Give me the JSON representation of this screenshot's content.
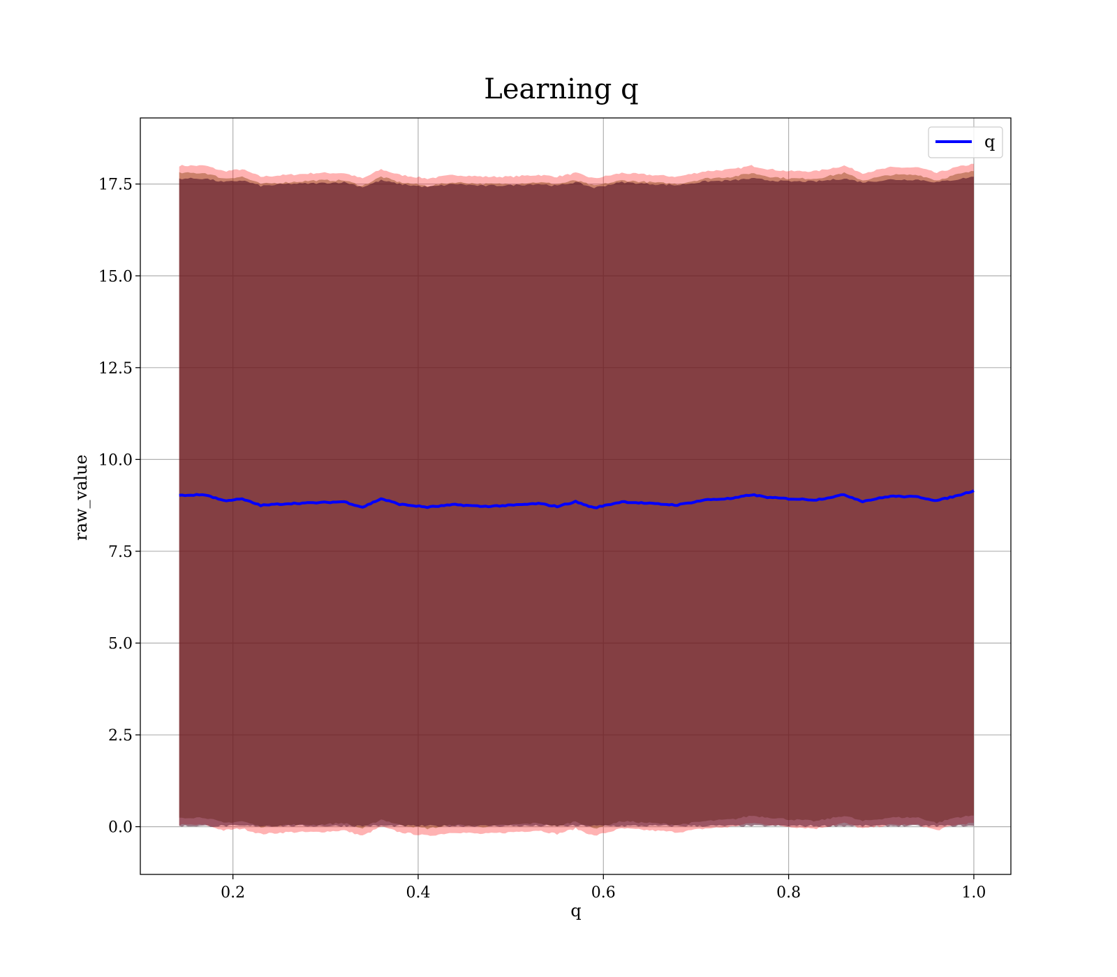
{
  "chart_data": {
    "type": "area",
    "title": "Learning q",
    "xlabel": "q",
    "ylabel": "raw_value",
    "xlim": [
      0.1,
      1.04
    ],
    "ylim": [
      -1.3,
      19.3
    ],
    "x_ticks": [
      0.2,
      0.4,
      0.6,
      0.8,
      1.0
    ],
    "x_tick_labels": [
      "0.2",
      "0.4",
      "0.6",
      "0.8",
      "1.0"
    ],
    "y_ticks": [
      0.0,
      2.5,
      5.0,
      7.5,
      10.0,
      12.5,
      15.0,
      17.5
    ],
    "y_tick_labels": [
      "0.0",
      "2.5",
      "5.0",
      "7.5",
      "10.0",
      "12.5",
      "15.0",
      "17.5"
    ],
    "grid": true,
    "legend": {
      "position": "top-right",
      "entries": [
        "q"
      ]
    },
    "x": [
      0.142,
      0.17,
      0.19,
      0.21,
      0.23,
      0.26,
      0.29,
      0.32,
      0.34,
      0.36,
      0.38,
      0.41,
      0.44,
      0.47,
      0.5,
      0.53,
      0.55,
      0.57,
      0.59,
      0.62,
      0.65,
      0.68,
      0.71,
      0.74,
      0.76,
      0.78,
      0.8,
      0.83,
      0.86,
      0.88,
      0.91,
      0.94,
      0.96,
      0.98,
      1.0
    ],
    "series": [
      {
        "name": "q",
        "color": "#0000ff",
        "values": [
          9.02,
          9.04,
          8.88,
          8.92,
          8.75,
          8.8,
          8.82,
          8.85,
          8.7,
          8.93,
          8.78,
          8.7,
          8.77,
          8.72,
          8.75,
          8.8,
          8.72,
          8.85,
          8.68,
          8.85,
          8.8,
          8.76,
          8.9,
          8.94,
          9.04,
          8.96,
          8.93,
          8.9,
          9.04,
          8.86,
          9.0,
          8.98,
          8.88,
          9.0,
          9.15
        ]
      }
    ],
    "bands": [
      {
        "color": "#ff0000",
        "opacity": 0.3,
        "lower": [
          0.05,
          0.05,
          -0.1,
          -0.05,
          -0.2,
          -0.15,
          -0.15,
          -0.1,
          -0.25,
          0.0,
          -0.15,
          -0.25,
          -0.15,
          -0.2,
          -0.15,
          -0.1,
          -0.2,
          -0.05,
          -0.25,
          -0.05,
          -0.1,
          -0.15,
          -0.05,
          0.0,
          0.1,
          0.05,
          0.0,
          -0.05,
          0.1,
          -0.05,
          0.05,
          0.05,
          -0.1,
          0.05,
          0.1
        ],
        "upper": [
          18.0,
          18.0,
          17.85,
          17.9,
          17.7,
          17.75,
          17.8,
          17.8,
          17.65,
          17.9,
          17.75,
          17.65,
          17.75,
          17.7,
          17.7,
          17.75,
          17.7,
          17.8,
          17.65,
          17.8,
          17.75,
          17.7,
          17.85,
          17.9,
          18.0,
          17.9,
          17.85,
          17.85,
          18.0,
          17.8,
          17.95,
          17.95,
          17.8,
          17.95,
          18.05
        ]
      },
      {
        "color": "#8b4513",
        "opacity": 0.45,
        "lower": [
          0.25,
          0.25,
          0.1,
          0.15,
          0.0,
          0.05,
          0.05,
          0.1,
          -0.05,
          0.2,
          0.05,
          -0.05,
          0.05,
          0.0,
          0.05,
          0.1,
          0.0,
          0.15,
          -0.05,
          0.15,
          0.1,
          0.05,
          0.15,
          0.2,
          0.3,
          0.25,
          0.2,
          0.15,
          0.3,
          0.15,
          0.25,
          0.25,
          0.1,
          0.25,
          0.3
        ],
        "upper": [
          17.8,
          17.8,
          17.65,
          17.7,
          17.5,
          17.55,
          17.6,
          17.6,
          17.45,
          17.7,
          17.55,
          17.45,
          17.55,
          17.5,
          17.5,
          17.55,
          17.5,
          17.6,
          17.45,
          17.6,
          17.55,
          17.5,
          17.65,
          17.7,
          17.8,
          17.7,
          17.65,
          17.65,
          17.8,
          17.6,
          17.75,
          17.75,
          17.6,
          17.75,
          17.85
        ]
      },
      {
        "color": "#4a0a22",
        "opacity": 0.55,
        "lower": [
          0.02,
          0.02,
          0.02,
          0.02,
          0.02,
          0.02,
          0.02,
          0.02,
          0.02,
          0.02,
          0.02,
          0.02,
          0.02,
          0.02,
          0.02,
          0.02,
          0.02,
          0.02,
          0.02,
          0.02,
          0.02,
          0.02,
          0.02,
          0.02,
          0.02,
          0.02,
          0.02,
          0.02,
          0.02,
          0.02,
          0.02,
          0.02,
          0.02,
          0.02,
          0.02
        ],
        "upper": [
          17.65,
          17.65,
          17.55,
          17.6,
          17.45,
          17.5,
          17.52,
          17.55,
          17.42,
          17.6,
          17.5,
          17.42,
          17.5,
          17.45,
          17.47,
          17.5,
          17.45,
          17.55,
          17.4,
          17.55,
          17.5,
          17.47,
          17.57,
          17.6,
          17.65,
          17.6,
          17.57,
          17.57,
          17.65,
          17.55,
          17.62,
          17.62,
          17.55,
          17.62,
          17.7
        ]
      }
    ]
  }
}
